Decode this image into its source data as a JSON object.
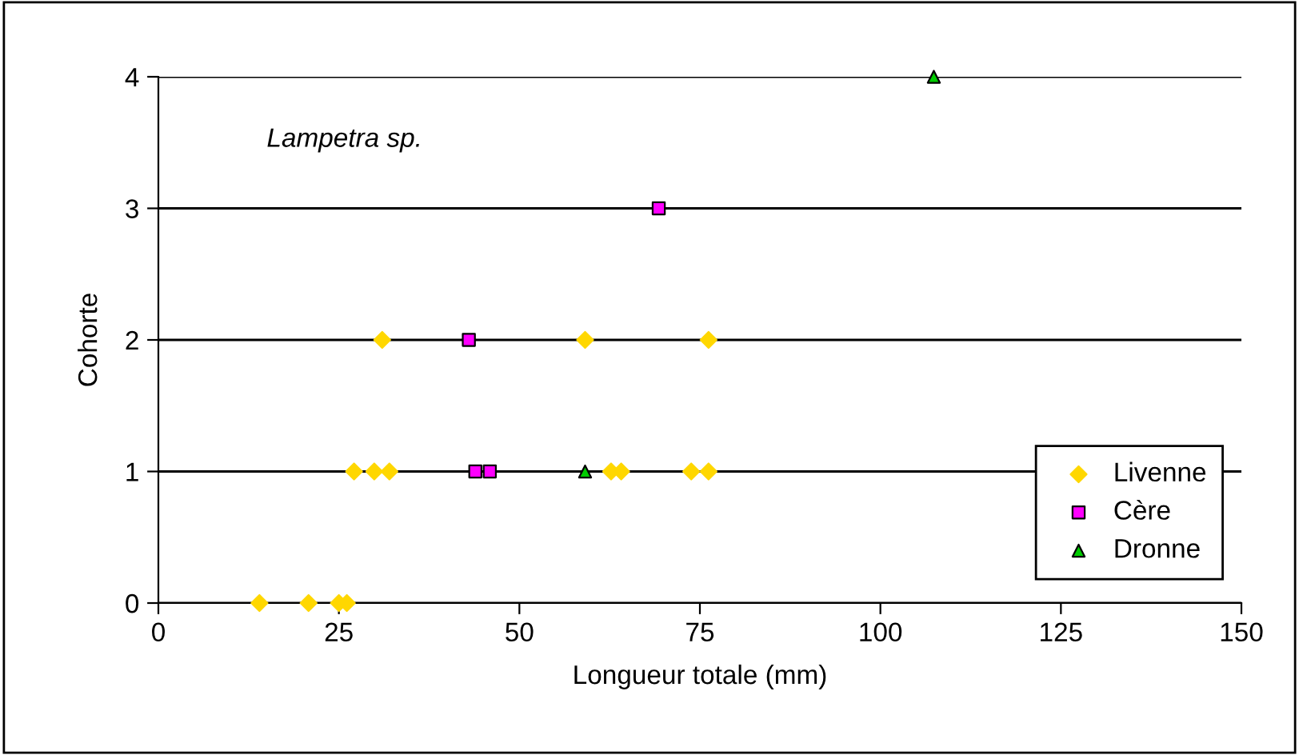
{
  "chart_data": {
    "type": "scatter",
    "xlabel": "Longueur totale (mm)",
    "ylabel": "Cohorte",
    "annotations": [
      "Lampetra sp."
    ],
    "xlim": [
      0,
      150
    ],
    "xticks": [
      0,
      25,
      50,
      75,
      100,
      125,
      150
    ],
    "ylim": [
      0,
      4
    ],
    "yticks": [
      0,
      1,
      2,
      3,
      4
    ],
    "grid": "y",
    "legend": "bottom right",
    "series": [
      {
        "name": "Livenne",
        "color": "#ffd700",
        "marker": "diamond",
        "x": [
          14.0,
          20.8,
          25.0,
          26.1,
          27.1,
          29.9,
          32.0,
          62.7,
          64.1,
          73.8,
          76.2,
          31.0,
          59.1,
          76.2
        ],
        "values": [
          0,
          0,
          0,
          0,
          1,
          1,
          1,
          1,
          1,
          1,
          1,
          2,
          2,
          2
        ]
      },
      {
        "name": "Cère",
        "color": "#ff00ff",
        "marker": "square",
        "x": [
          43.9,
          45.9,
          43.0,
          69.3
        ],
        "values": [
          1,
          1,
          2,
          3
        ]
      },
      {
        "name": "Dronne",
        "color": "#00cc00",
        "marker": "triangle",
        "x": [
          59.1,
          107.4
        ],
        "values": [
          1,
          4
        ]
      }
    ]
  }
}
